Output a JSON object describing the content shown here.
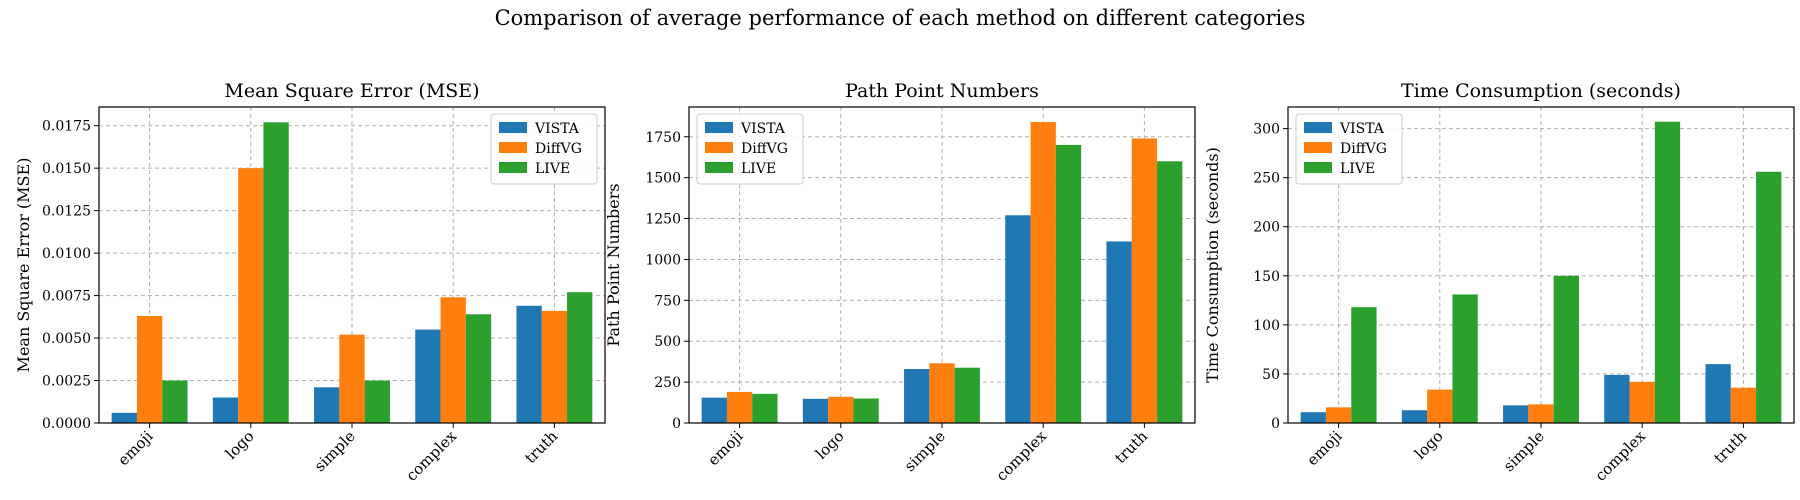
{
  "suptitle": "Comparison of average performance of each method on different categories",
  "colors": {
    "VISTA": "#1f77b4",
    "DiffVG": "#ff7f0e",
    "LIVE": "#2ca02c",
    "grid": "#b0b0b0"
  },
  "chart_data": [
    {
      "type": "bar",
      "title": "Mean Square Error (MSE)",
      "xlabel": "",
      "ylabel": "Mean Square Error (MSE)",
      "categories": [
        "emoji",
        "logo",
        "simple",
        "complex",
        "truth"
      ],
      "series": [
        {
          "name": "VISTA",
          "values": [
            0.0006,
            0.0015,
            0.0021,
            0.0055,
            0.0069
          ]
        },
        {
          "name": "DiffVG",
          "values": [
            0.0063,
            0.015,
            0.0052,
            0.0074,
            0.0066
          ]
        },
        {
          "name": "LIVE",
          "values": [
            0.0025,
            0.0177,
            0.0025,
            0.0064,
            0.0077
          ]
        }
      ],
      "ylim": [
        0,
        0.0186
      ],
      "yticks": [
        "0.0000",
        "0.0025",
        "0.0050",
        "0.0075",
        "0.0100",
        "0.0125",
        "0.0150",
        "0.0175"
      ],
      "legend_position": "upper right",
      "grid": true
    },
    {
      "type": "bar",
      "title": "Path Point Numbers",
      "xlabel": "",
      "ylabel": "Path Point Numbers",
      "categories": [
        "emoji",
        "logo",
        "simple",
        "complex",
        "truth"
      ],
      "series": [
        {
          "name": "VISTA",
          "values": [
            155,
            148,
            330,
            1270,
            1110
          ]
        },
        {
          "name": "DiffVG",
          "values": [
            190,
            160,
            365,
            1840,
            1740
          ]
        },
        {
          "name": "LIVE",
          "values": [
            178,
            150,
            338,
            1700,
            1600
          ]
        }
      ],
      "ylim": [
        0,
        1932
      ],
      "yticks": [
        "0",
        "250",
        "500",
        "750",
        "1000",
        "1250",
        "1500",
        "1750"
      ],
      "legend_position": "upper left",
      "grid": true
    },
    {
      "type": "bar",
      "title": "Time Consumption (seconds)",
      "xlabel": "",
      "ylabel": "Time Consumption (seconds)",
      "categories": [
        "emoji",
        "logo",
        "simple",
        "complex",
        "truth"
      ],
      "series": [
        {
          "name": "VISTA",
          "values": [
            11,
            13,
            18,
            49,
            60
          ]
        },
        {
          "name": "DiffVG",
          "values": [
            16,
            34,
            19,
            42,
            36
          ]
        },
        {
          "name": "LIVE",
          "values": [
            118,
            131,
            150,
            307,
            256
          ]
        }
      ],
      "ylim": [
        0,
        322
      ],
      "yticks": [
        "0",
        "50",
        "100",
        "150",
        "200",
        "250",
        "300"
      ],
      "legend_position": "upper left",
      "grid": true
    }
  ]
}
